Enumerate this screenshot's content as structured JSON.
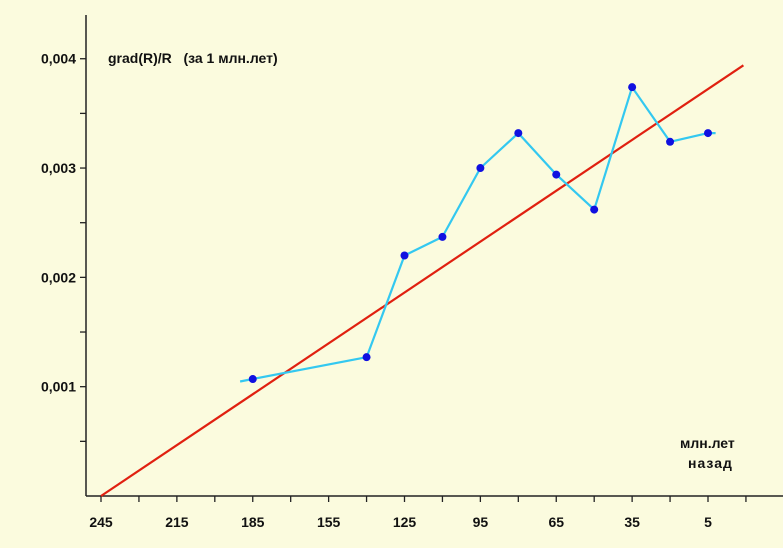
{
  "chart_data": {
    "type": "line",
    "title": "grad(R)/R   (за 1 млн.лет)",
    "xlabel": [
      "млн.лет",
      "назад"
    ],
    "ylabel": "",
    "x_reversed": true,
    "xlim": [
      250,
      -25
    ],
    "ylim": [
      0,
      0.0044
    ],
    "x_ticks": [
      245,
      215,
      185,
      155,
      125,
      95,
      65,
      35,
      5
    ],
    "y_ticks": [
      0.001,
      0.002,
      0.003,
      0.004
    ],
    "y_tick_labels": [
      "0,001",
      "0,002",
      "0,003",
      "0,004"
    ],
    "grid": false,
    "series": [
      {
        "type": "line",
        "color": "#33c8f0",
        "markers": true,
        "marker_color": "#1010e0",
        "x": [
          185,
          140,
          125,
          110,
          95,
          80,
          65,
          50,
          35,
          20,
          5
        ],
        "y": [
          0.00107,
          0.00127,
          0.0022,
          0.00237,
          0.003,
          0.00332,
          0.00294,
          0.00262,
          0.00374,
          0.00324,
          0.00332
        ],
        "line_extends_to_x": [
          190,
          2
        ]
      },
      {
        "type": "trend-line",
        "color": "#e02010",
        "x": [
          245,
          -9
        ],
        "y": [
          0.0,
          0.00394
        ]
      }
    ]
  }
}
